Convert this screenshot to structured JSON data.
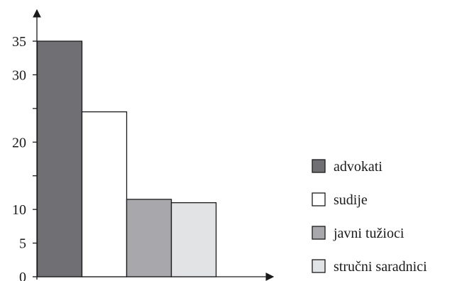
{
  "chart_data": {
    "type": "bar",
    "categories": [
      "advokati",
      "sudije",
      "javni tužioci",
      "stručni saradnici"
    ],
    "values": [
      35,
      24.5,
      11.5,
      11
    ],
    "colors": [
      "#707074",
      "#ffffff",
      "#a8a8ac",
      "#e2e3e5"
    ],
    "ylim": [
      0,
      37
    ],
    "y_tick_labels": [
      {
        "value": 0,
        "label": "0"
      },
      {
        "value": 5,
        "label": "5"
      },
      {
        "value": 10,
        "label": "10"
      },
      {
        "value": 20,
        "label": "20"
      },
      {
        "value": 30,
        "label": "30"
      },
      {
        "value": 35,
        "label": "35"
      }
    ],
    "y_minor_ticks": [
      15,
      25
    ],
    "legend": {
      "position": "right",
      "entries": [
        {
          "label": "advokati",
          "color": "#707074"
        },
        {
          "label": "sudije",
          "color": "#ffffff"
        },
        {
          "label": "javni tužioci",
          "color": "#a8a8ac"
        },
        {
          "label": "stručni saradnici",
          "color": "#e2e3e5"
        }
      ]
    },
    "grid": false
  }
}
